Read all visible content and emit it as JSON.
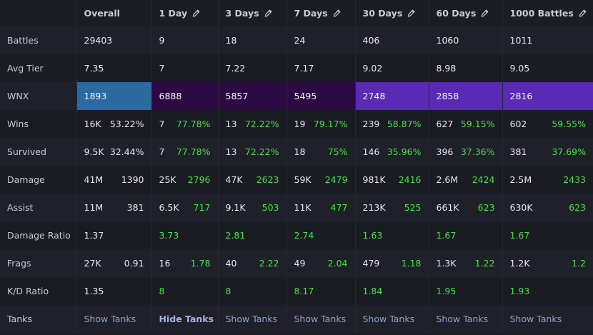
{
  "columns": [
    "Overall",
    "1 Day",
    "3 Days",
    "7 Days",
    "30 Days",
    "60 Days",
    "1000 Battles"
  ],
  "editable": [
    false,
    true,
    true,
    true,
    true,
    true,
    true
  ],
  "icons": {
    "edit": "pencil-icon"
  },
  "colors": {
    "positive": "#44e344",
    "link": "#8aa1d6",
    "wnx": [
      "#2a6aa1",
      "#2c0a44",
      "#2c0a44",
      "#2c0a44",
      "#5a2ab4",
      "#5a2ab4",
      "#5a2ab4"
    ]
  },
  "rows": [
    {
      "label": "Battles",
      "type": "single",
      "cells": [
        "29403",
        "9",
        "18",
        "24",
        "406",
        "1060",
        "1011"
      ]
    },
    {
      "label": "Avg Tier",
      "type": "single",
      "cells": [
        "7.35",
        "7",
        "7.22",
        "7.17",
        "9.02",
        "8.98",
        "9.05"
      ]
    },
    {
      "label": "WNX",
      "type": "wnx",
      "cells": [
        "1893",
        "6888",
        "5857",
        "5495",
        "2748",
        "2858",
        "2816"
      ]
    },
    {
      "label": "Wins",
      "type": "pair",
      "cells": [
        [
          "16K",
          "53.22%"
        ],
        [
          "7",
          "77.78%"
        ],
        [
          "13",
          "72.22%"
        ],
        [
          "19",
          "79.17%"
        ],
        [
          "239",
          "58.87%"
        ],
        [
          "627",
          "59.15%"
        ],
        [
          "602",
          "59.55%"
        ]
      ]
    },
    {
      "label": "Survived",
      "type": "pair",
      "cells": [
        [
          "9.5K",
          "32.44%"
        ],
        [
          "7",
          "77.78%"
        ],
        [
          "13",
          "72.22%"
        ],
        [
          "18",
          "75%"
        ],
        [
          "146",
          "35.96%"
        ],
        [
          "396",
          "37.36%"
        ],
        [
          "381",
          "37.69%"
        ]
      ]
    },
    {
      "label": "Damage",
      "type": "pair",
      "cells": [
        [
          "41M",
          "1390"
        ],
        [
          "25K",
          "2796"
        ],
        [
          "47K",
          "2623"
        ],
        [
          "59K",
          "2479"
        ],
        [
          "981K",
          "2416"
        ],
        [
          "2.6M",
          "2424"
        ],
        [
          "2.5M",
          "2433"
        ]
      ]
    },
    {
      "label": "Assist",
      "type": "pair",
      "cells": [
        [
          "11M",
          "381"
        ],
        [
          "6.5K",
          "717"
        ],
        [
          "9.1K",
          "503"
        ],
        [
          "11K",
          "477"
        ],
        [
          "213K",
          "525"
        ],
        [
          "661K",
          "623"
        ],
        [
          "630K",
          "623"
        ]
      ]
    },
    {
      "label": "Damage Ratio",
      "type": "single",
      "cells": [
        "1.37",
        "3.73",
        "2.81",
        "2.74",
        "1.63",
        "1.67",
        "1.67"
      ]
    },
    {
      "label": "Frags",
      "type": "pair",
      "cells": [
        [
          "27K",
          "0.91"
        ],
        [
          "16",
          "1.78"
        ],
        [
          "40",
          "2.22"
        ],
        [
          "49",
          "2.04"
        ],
        [
          "479",
          "1.18"
        ],
        [
          "1.3K",
          "1.22"
        ],
        [
          "1.2K",
          "1.2"
        ]
      ]
    },
    {
      "label": "K/D Ratio",
      "type": "single",
      "cells": [
        "1.35",
        "8",
        "8",
        "8.17",
        "1.84",
        "1.95",
        "1.93"
      ]
    },
    {
      "label": "Tanks",
      "type": "link",
      "cells": [
        "Show Tanks",
        "Hide Tanks",
        "Show Tanks",
        "Show Tanks",
        "Show Tanks",
        "Show Tanks",
        "Show Tanks"
      ],
      "active": 1
    }
  ]
}
